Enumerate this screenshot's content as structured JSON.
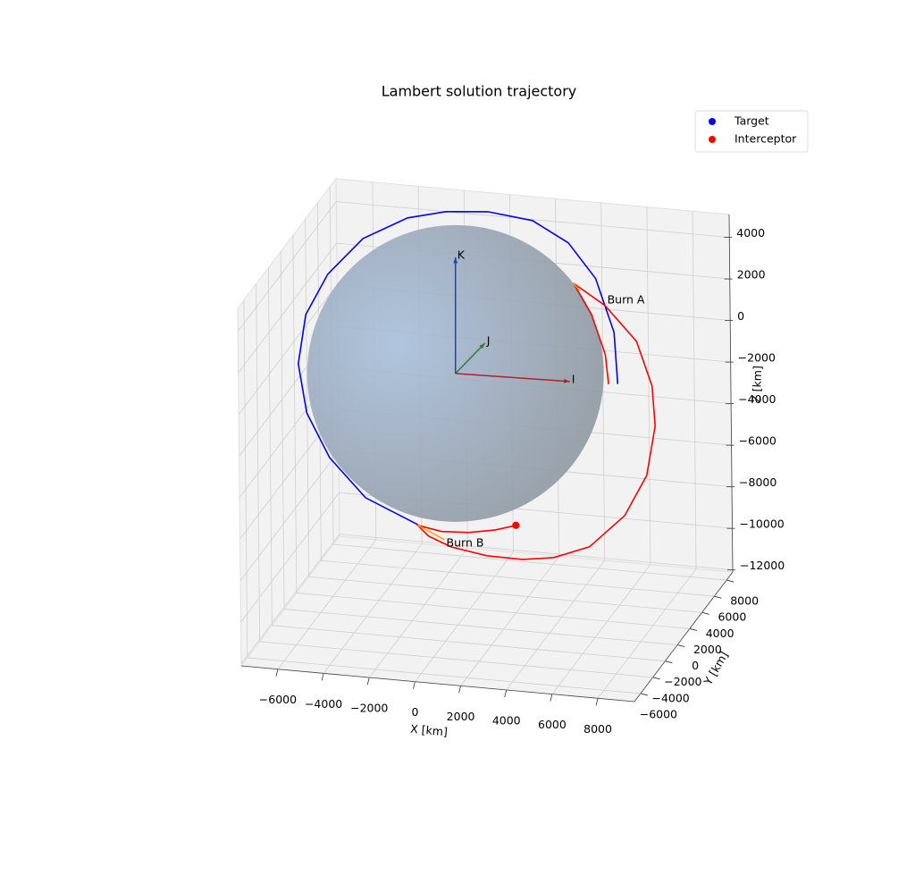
{
  "chart_data": {
    "type": "line3d",
    "title": "Lambert solution trajectory",
    "xlabel": "X [km]",
    "ylabel": "Y [km]",
    "zlabel": "Z [km]",
    "xlim": [
      -7600,
      9600
    ],
    "ylim": [
      -7000,
      9000
    ],
    "zlim": [
      -12100,
      5100
    ],
    "xticks": [
      {
        "value": -6000,
        "label": "−6000"
      },
      {
        "value": -4000,
        "label": "−4000"
      },
      {
        "value": -2000,
        "label": "−2000"
      },
      0,
      2000,
      4000,
      6000,
      8000
    ],
    "yticks": [
      {
        "value": -6000,
        "label": "−6000"
      },
      {
        "value": -4000,
        "label": "−4000"
      },
      {
        "value": -2000,
        "label": "−2000"
      },
      0,
      2000,
      4000,
      6000,
      8000
    ],
    "zticks": [
      {
        "value": -12000,
        "label": "−12000"
      },
      {
        "value": -10000,
        "label": "−10000"
      },
      {
        "value": -8000,
        "label": "−8000"
      },
      {
        "value": -6000,
        "label": "−6000"
      },
      {
        "value": -4000,
        "label": "−4000"
      },
      {
        "value": -2000,
        "label": "−2000"
      },
      0,
      2000,
      4000
    ],
    "grid": true,
    "legend": "upper right",
    "frame_labels": [
      "I",
      "J",
      "K"
    ],
    "series": [
      {
        "name": "Target",
        "color": "blue",
        "x": [
          7100,
          6960,
          6180,
          5000,
          3440,
          1490,
          -350,
          -2030,
          -3990,
          -5550,
          -6530,
          -6880,
          -6530,
          -5550,
          -3990,
          -1720
        ],
        "y": [
          0,
          0,
          0,
          0,
          0,
          0,
          0,
          0,
          0,
          0,
          0,
          0,
          0,
          0,
          0,
          0
        ],
        "z": [
          200,
          2670,
          5180,
          6780,
          7700,
          7930,
          7750,
          7280,
          6090,
          4220,
          2180,
          -220,
          -2550,
          -4600,
          -6380,
          -7440
        ],
        "position": {
          "x": 2580,
          "y": 0,
          "z": -7050
        }
      },
      {
        "name": "Interceptor",
        "color": "red",
        "x": [
          6700,
          6570,
          5980,
          5200,
          6570,
          7940,
          8600,
          8720,
          8330,
          7350,
          5790,
          4220,
          2850,
          1290,
          -270,
          -1250,
          -1720,
          -670,
          510,
          1680,
          2580
        ],
        "y": [
          0,
          0,
          0,
          0,
          0,
          0,
          0,
          0,
          0,
          0,
          0,
          0,
          0,
          0,
          0,
          0,
          0,
          0,
          0,
          0,
          0
        ],
        "z": [
          150,
          1560,
          3440,
          4860,
          3930,
          2340,
          260,
          -1660,
          -4070,
          -6100,
          -7760,
          -8440,
          -8660,
          -8640,
          -8370,
          -7950,
          -7480,
          -7670,
          -7600,
          -7360,
          -7050
        ],
        "position": {
          "x": 2580,
          "y": 0,
          "z": -7050
        }
      }
    ],
    "burns": [
      {
        "label": "Burn A",
        "color": "orange",
        "x": [
          5200,
          5470
        ],
        "y": [
          0,
          0
        ],
        "z": [
          4860,
          4540
        ]
      },
      {
        "label": "Burn B",
        "color": "orange",
        "x": [
          -1720,
          -550
        ],
        "y": [
          0,
          0
        ],
        "z": [
          -7480,
          -8050
        ]
      }
    ]
  }
}
